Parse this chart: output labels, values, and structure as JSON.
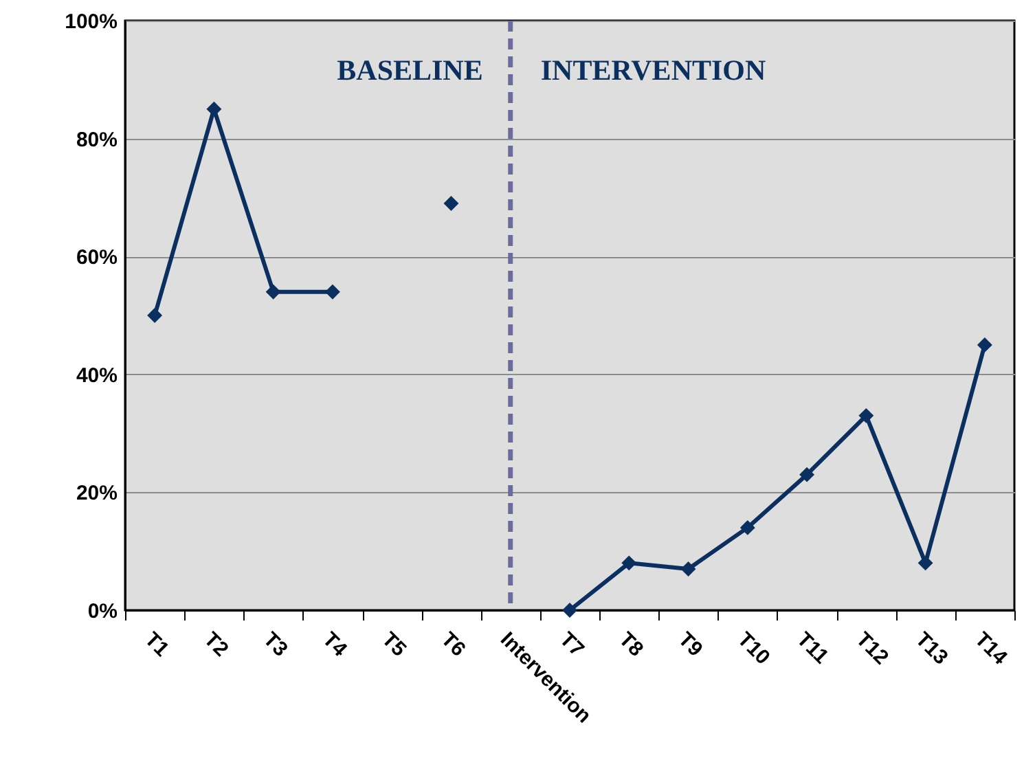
{
  "chart_data": {
    "type": "line",
    "categories": [
      "T1",
      "T2",
      "T3",
      "T4",
      "T5",
      "T6",
      "Intervention",
      "T7",
      "T8",
      "T9",
      "T10",
      "T11",
      "T12",
      "T13",
      "T14"
    ],
    "series": [
      {
        "color": "#0b2f5e",
        "values": [
          50,
          85,
          54,
          54,
          null,
          69,
          null,
          0,
          8,
          7,
          14,
          23,
          33,
          8,
          45
        ]
      }
    ],
    "ylim": [
      0,
      100
    ],
    "yticks": [
      {
        "value": 0,
        "label": "0%"
      },
      {
        "value": 20,
        "label": "20%"
      },
      {
        "value": 40,
        "label": "40%"
      },
      {
        "value": 60,
        "label": "60%"
      },
      {
        "value": 80,
        "label": "80%"
      },
      {
        "value": 100,
        "label": "100%"
      }
    ],
    "grid": "y",
    "marker": "diamond",
    "line_style": "solid",
    "ref_lines": [
      {
        "axis": "x",
        "value": "Intervention",
        "color": "#6b6b9e",
        "line_style": "dashed"
      }
    ],
    "annotations": [
      "BASELINE",
      "INTERVENTION"
    ]
  }
}
